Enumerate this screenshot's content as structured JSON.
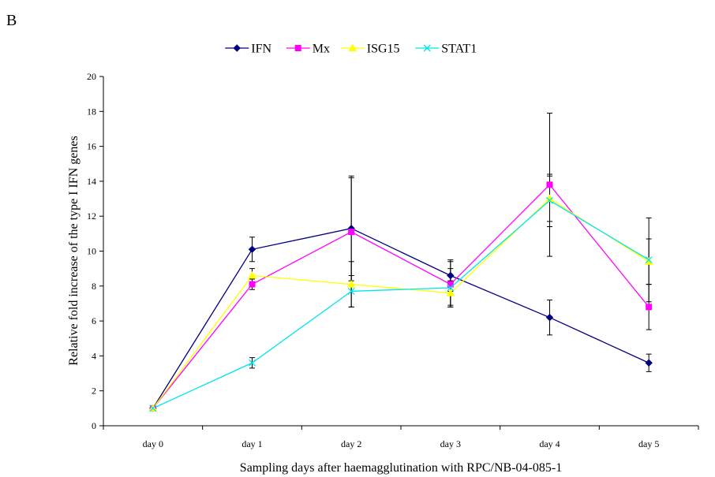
{
  "panel_label": "B",
  "chart_data": {
    "type": "line",
    "xlabel": "Sampling days after haemagglutination with RPC/NB-04-085-1",
    "ylabel": "Relative fold increase of the type I IFN genes",
    "categories": [
      "day 0",
      "day 1",
      "day 2",
      "day 3",
      "day 4",
      "day 5"
    ],
    "ylim": [
      0,
      20
    ],
    "yticks": [
      0,
      2,
      4,
      6,
      8,
      10,
      12,
      14,
      16,
      18,
      20
    ],
    "grid": false,
    "legend_position": "top-center",
    "series": [
      {
        "name": "IFN",
        "color": "#000080",
        "marker": "diamond",
        "values": [
          1.0,
          10.1,
          11.3,
          8.6,
          6.2,
          3.6
        ],
        "errors": [
          0,
          0.7,
          3.0,
          0.9,
          1.0,
          0.5
        ]
      },
      {
        "name": "Mx",
        "color": "#ff00ff",
        "marker": "square",
        "values": [
          1.0,
          8.1,
          11.1,
          8.1,
          13.8,
          6.8
        ],
        "errors": [
          0,
          0.3,
          3.1,
          1.3,
          4.1,
          1.3
        ]
      },
      {
        "name": "ISG15",
        "color": "#ffff00",
        "marker": "triangle",
        "values": [
          1.0,
          8.6,
          8.1,
          7.6,
          13.0,
          9.4
        ],
        "errors": [
          0,
          0.4,
          1.3,
          0.7,
          1.3,
          1.3
        ]
      },
      {
        "name": "STAT1",
        "color": "#00e5ee",
        "marker": "x",
        "values": [
          1.0,
          3.6,
          7.7,
          7.9,
          12.9,
          9.5
        ],
        "errors": [
          0,
          0.3,
          0.9,
          1.1,
          1.5,
          2.4
        ]
      }
    ]
  }
}
